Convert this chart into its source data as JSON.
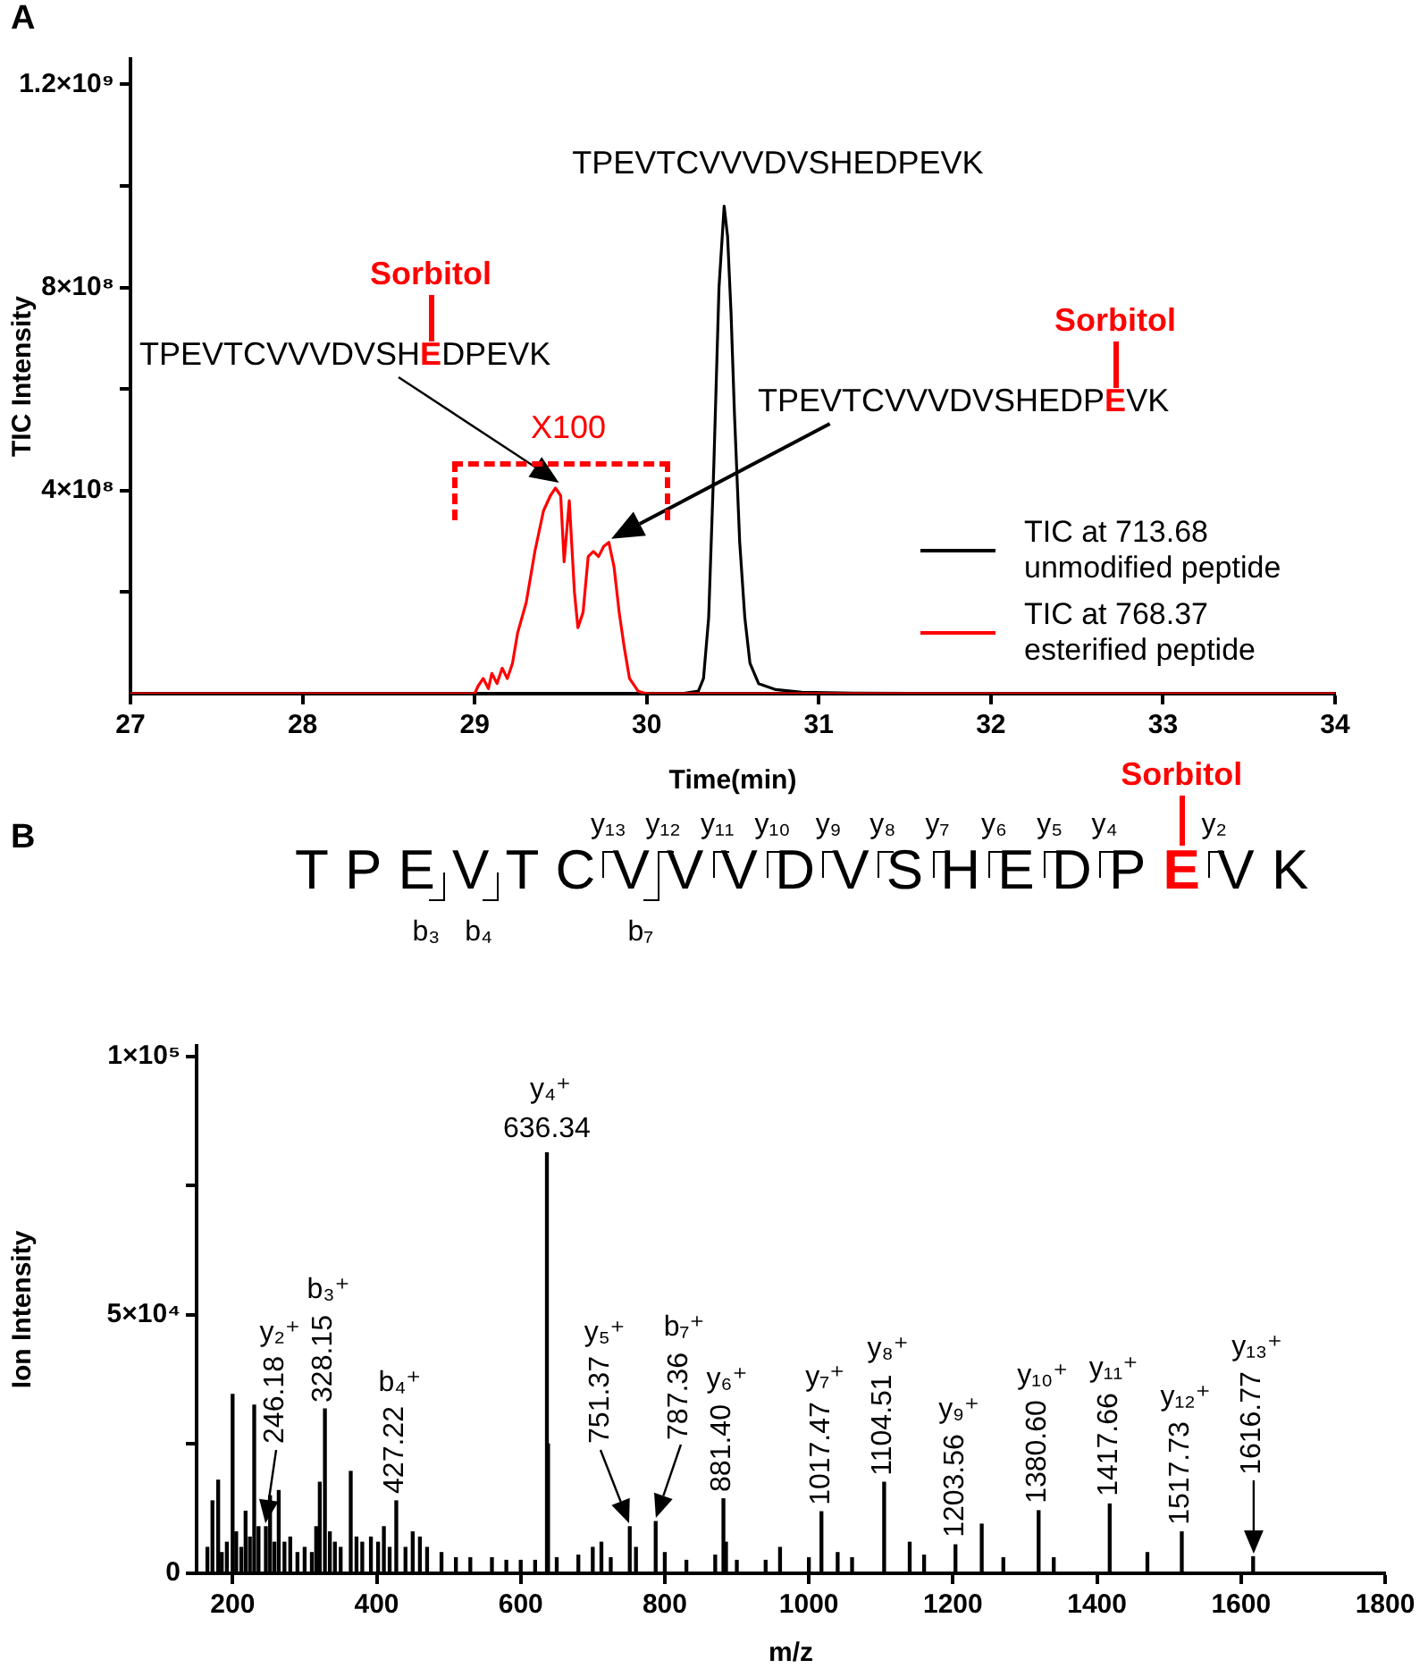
{
  "chart_data": [
    {
      "type": "line",
      "title": "A",
      "xlabel": "Time(min)",
      "ylabel": "TIC Intensity",
      "xlim": [
        27,
        34
      ],
      "xticks": [
        27,
        28,
        29,
        30,
        31,
        32,
        33,
        34
      ],
      "ylim": [
        0,
        1250000000
      ],
      "yticks": [
        {
          "value": 200000000,
          "label": null
        },
        {
          "value": 400000000,
          "label": "4×10⁸"
        },
        {
          "value": 600000000,
          "label": null
        },
        {
          "value": 800000000,
          "label": "8×10⁸"
        },
        {
          "value": 1000000000,
          "label": null
        },
        {
          "value": 1200000000,
          "label": "1.2×10⁹"
        }
      ],
      "grid": false,
      "legend": "bottom right",
      "marker": "none",
      "series": [
        {
          "name": "TIC at 713.68 unmodified peptide",
          "color": "#000000",
          "x": [
            27,
            30.2,
            30.3,
            30.33,
            30.36,
            30.39,
            30.42,
            30.45,
            30.47,
            30.49,
            30.51,
            30.54,
            30.57,
            30.6,
            30.65,
            30.75,
            30.9,
            31.2,
            34
          ],
          "values": [
            0,
            0,
            5000000,
            30000000,
            150000000,
            450000000,
            800000000,
            960000000,
            900000000,
            750000000,
            550000000,
            300000000,
            150000000,
            60000000,
            20000000,
            8000000,
            3000000,
            1000000,
            0
          ]
        },
        {
          "name": "TIC at 768.37 esterified peptide",
          "color": "#ff0000",
          "x": [
            27,
            29,
            29.02,
            29.05,
            29.08,
            29.1,
            29.13,
            29.16,
            29.19,
            29.22,
            29.25,
            29.3,
            29.35,
            29.4,
            29.44,
            29.47,
            29.5,
            29.52,
            29.55,
            29.58,
            29.6,
            29.63,
            29.66,
            29.69,
            29.72,
            29.75,
            29.78,
            29.81,
            29.84,
            29.87,
            29.9,
            29.95,
            30,
            34
          ],
          "values": [
            0,
            0,
            15000000,
            30000000,
            10000000,
            40000000,
            20000000,
            50000000,
            30000000,
            60000000,
            120000000,
            180000000,
            280000000,
            360000000,
            390000000,
            405000000,
            390000000,
            260000000,
            380000000,
            200000000,
            130000000,
            160000000,
            270000000,
            280000000,
            270000000,
            290000000,
            298000000,
            250000000,
            160000000,
            90000000,
            30000000,
            5000000,
            0,
            0
          ]
        }
      ],
      "annotations": [
        {
          "text": "TPEVTCVVVDVSHEDPEVK",
          "x": 30.45,
          "y": 960000000
        },
        "Sorbitol",
        "TPEVTCVVVDVSH",
        "E",
        "DPEVK",
        "X100",
        "Sorbitol",
        "TPEVTCVVVDVSHEDP",
        "E",
        "VK"
      ]
    },
    {
      "type": "bar",
      "title": "B",
      "xlabel": "m/z",
      "ylabel": "Ion Intensity",
      "xlim": [
        150,
        1800
      ],
      "xticks": [
        200,
        400,
        600,
        800,
        1000,
        1200,
        1400,
        1600,
        1800
      ],
      "ylim": [
        0,
        102000
      ],
      "yticks": [
        0,
        {
          "value": 25000,
          "label": null
        },
        {
          "value": 50000,
          "label": "5×10⁴"
        },
        {
          "value": 75000,
          "label": null
        },
        {
          "value": 100000,
          "label": "1×10⁵"
        }
      ],
      "grid": false,
      "color": "#000000",
      "x": [
        165,
        172,
        180,
        185,
        192,
        200,
        205,
        212,
        218,
        224,
        230,
        236,
        246.18,
        252,
        258,
        264,
        272,
        280,
        290,
        300,
        310,
        316,
        321,
        328.15,
        335,
        342,
        350,
        364,
        372,
        380,
        392,
        402,
        410,
        418,
        427.22,
        440,
        450,
        460,
        470,
        490,
        510,
        530,
        560,
        580,
        600,
        620,
        636.34,
        638,
        650,
        680,
        700,
        712,
        725,
        751.37,
        760,
        787.36,
        800,
        830,
        870,
        881.4,
        885,
        900,
        940,
        960,
        1000,
        1017.47,
        1040,
        1060,
        1104.51,
        1140,
        1160,
        1203.56,
        1240,
        1270,
        1319,
        1340,
        1417.66,
        1470,
        1517.73,
        1616.77
      ],
      "values": [
        5000,
        14000,
        18000,
        4000,
        6000,
        34600,
        8000,
        5000,
        12000,
        7000,
        32500,
        9000,
        9000,
        15000,
        6000,
        16000,
        6000,
        7000,
        4000,
        5000,
        4000,
        9000,
        17600,
        31800,
        8000,
        6000,
        5000,
        19700,
        7000,
        6000,
        7000,
        6000,
        9000,
        5000,
        14000,
        5000,
        8000,
        7000,
        5000,
        4000,
        3000,
        3000,
        3000,
        2500,
        2500,
        2500,
        81300,
        25000,
        3000,
        3500,
        5000,
        6000,
        3000,
        9000,
        5000,
        10000,
        4000,
        2500,
        3500,
        14400,
        6000,
        2500,
        2500,
        5000,
        3000,
        11900,
        4000,
        3000,
        17600,
        6000,
        3500,
        5500,
        9500,
        3000,
        12100,
        3000,
        13400,
        4000,
        8000,
        3200
      ],
      "annotations": [
        "T P E V T C V V V D V S H E D P",
        "E",
        "V K",
        "Sorbitol",
        "y₁₃",
        "y₁₂",
        "y₁₁",
        "y₁₀",
        "y₉",
        "y₈",
        "y₇",
        "y₆",
        "y₅",
        "y₄",
        "y₂",
        "b₃",
        "b₄",
        "b₇",
        "y₂⁺",
        {
          "text": "246.18",
          "x": 246.18,
          "y": 9000
        },
        "b₃⁺",
        {
          "text": "328.15",
          "x": 328.15,
          "y": 31800
        },
        "b₄⁺",
        {
          "text": "427.22",
          "x": 427.22,
          "y": 14000
        },
        "y₄⁺",
        {
          "text": "636.34",
          "x": 636.34,
          "y": 81300
        },
        "y₅⁺",
        {
          "text": "751.37",
          "x": 751.37,
          "y": 9000
        },
        "b₇⁺",
        {
          "text": "787.36",
          "x": 787.36,
          "y": 10000
        },
        "y₆⁺",
        {
          "text": "881.40",
          "x": 881.4,
          "y": 14400
        },
        "y₇⁺",
        {
          "text": "1017.47",
          "x": 1017.47,
          "y": 11900
        },
        "y₈⁺",
        {
          "text": "1104.51",
          "x": 1104.51,
          "y": 17600
        },
        "y₉⁺",
        {
          "text": "1203.56",
          "x": 1203.56,
          "y": 5500
        },
        "y₁₀⁺",
        {
          "text": "1380.60",
          "x": 1319,
          "y": 12100
        },
        "y₁₁⁺",
        {
          "text": "1417.66",
          "x": 1417.66,
          "y": 13400
        },
        "y₁₂⁺",
        {
          "text": "1517.73",
          "x": 1517.73,
          "y": 8000
        },
        "y₁₃⁺",
        {
          "text": "1616.77",
          "x": 1616.77,
          "y": 3200
        }
      ]
    }
  ]
}
